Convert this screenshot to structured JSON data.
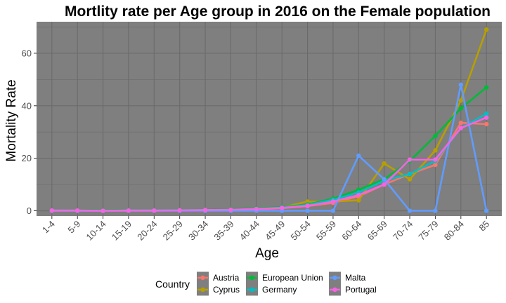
{
  "chart_data": {
    "type": "line",
    "title": "Mortlity rate per Age group in 2016 on the Female population",
    "xlabel": "Age",
    "ylabel": "Mortality Rate",
    "categories": [
      "1-4",
      "5-9",
      "10-14",
      "15-19",
      "20-24",
      "25-29",
      "30-34",
      "35-39",
      "40-44",
      "45-49",
      "50-54",
      "55-59",
      "60-64",
      "65-69",
      "70-74",
      "75-79",
      "80-84",
      "85"
    ],
    "yticks": [
      0,
      20,
      40,
      60
    ],
    "ylim": [
      -2,
      72
    ],
    "grid": true,
    "panel_background": "#7f7f7f",
    "grid_color": "#6b6b6b",
    "legend": {
      "title": "Country",
      "position": "bottom"
    },
    "series": [
      {
        "name": "Austria",
        "color": "#F8766D",
        "values": [
          0.1,
          0.0,
          0.0,
          0.1,
          0.1,
          0.2,
          0.2,
          0.3,
          0.5,
          1.0,
          1.8,
          3.0,
          5.5,
          10.0,
          14.0,
          17.5,
          33.5,
          33.0
        ]
      },
      {
        "name": "Cyprus",
        "color": "#B79F00",
        "values": [
          0.0,
          0.0,
          0.0,
          0.0,
          0.0,
          0.2,
          0.3,
          0.3,
          0.6,
          1.3,
          3.5,
          3.5,
          4.0,
          18.0,
          12.0,
          23.0,
          42.0,
          69.0
        ]
      },
      {
        "name": "European Union",
        "color": "#00BA38",
        "values": [
          0.1,
          0.1,
          0.1,
          0.2,
          0.2,
          0.3,
          0.4,
          0.6,
          0.9,
          1.4,
          2.4,
          4.6,
          8.0,
          12.0,
          19.0,
          28.5,
          39.0,
          47.0
        ]
      },
      {
        "name": "Germany",
        "color": "#00BFC4",
        "values": [
          0.1,
          0.0,
          0.0,
          0.1,
          0.1,
          0.2,
          0.3,
          0.4,
          0.7,
          1.2,
          2.2,
          4.2,
          7.0,
          11.5,
          14.0,
          19.0,
          31.5,
          37.0
        ]
      },
      {
        "name": "Malta",
        "color": "#619CFF",
        "values": [
          0.0,
          0.0,
          0.0,
          0.0,
          0.0,
          0.0,
          0.0,
          0.0,
          0.0,
          0.0,
          0.0,
          0.0,
          21.0,
          12.0,
          0.0,
          0.0,
          48.0,
          0.0
        ]
      },
      {
        "name": "Portugal",
        "color": "#F564E3",
        "values": [
          0.1,
          0.1,
          0.0,
          0.1,
          0.1,
          0.2,
          0.3,
          0.4,
          0.7,
          1.1,
          1.9,
          3.5,
          6.0,
          10.0,
          19.5,
          19.5,
          31.5,
          35.5
        ]
      }
    ]
  }
}
